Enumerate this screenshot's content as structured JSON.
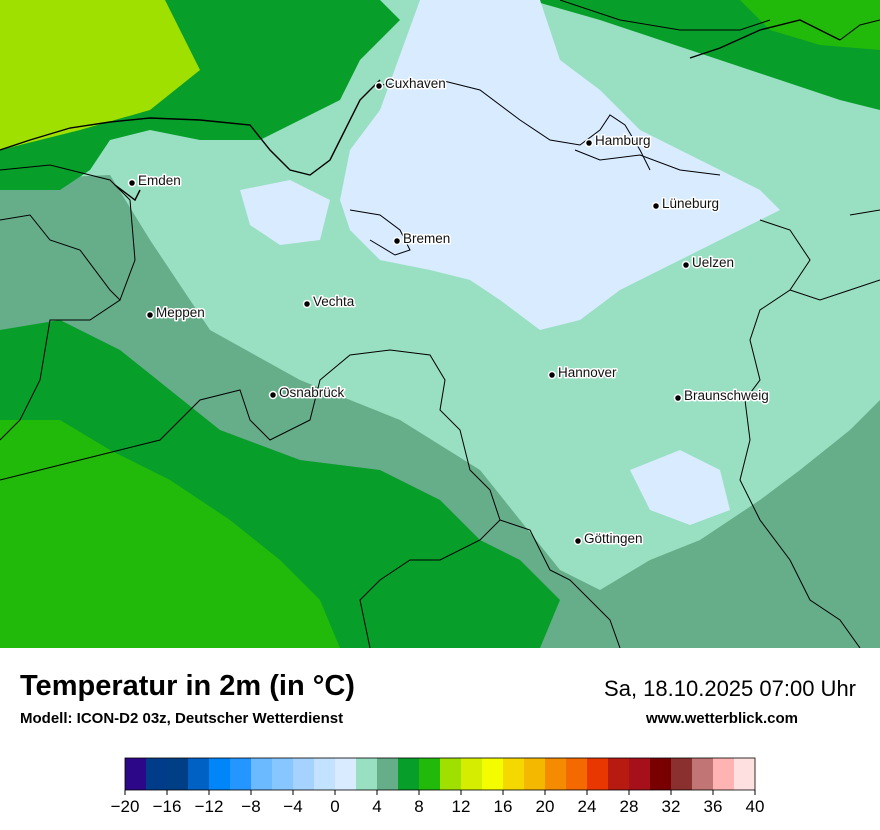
{
  "title": "Temperatur in 2m (in °C)",
  "subtitle": "Modell: ICON-D2 03z, Deutscher Wetterdienst",
  "datetime": "Sa, 18.10.2025 07:00 Uhr",
  "website": "www.wetterblick.com",
  "cities": [
    {
      "name": "Cuxhaven"
    },
    {
      "name": "Hamburg"
    },
    {
      "name": "Emden"
    },
    {
      "name": "Lüneburg"
    },
    {
      "name": "Bremen"
    },
    {
      "name": "Uelzen"
    },
    {
      "name": "Vechta"
    },
    {
      "name": "Meppen"
    },
    {
      "name": "Hannover"
    },
    {
      "name": "Osnabrück"
    },
    {
      "name": "Braunschweig"
    },
    {
      "name": "Göttingen"
    }
  ],
  "colors": {
    "land_4_6": "#99dfc1",
    "land_2_4": "#d8ebff",
    "land_6_8": "#66ad8a",
    "land_8_10": "#079e2a",
    "land_10_12": "#21b90a",
    "sea_12_14": "#9fe000",
    "border": "#000000"
  },
  "legend": {
    "ticks": [
      "−20",
      "−16",
      "−12",
      "−8",
      "−4",
      "0",
      "4",
      "8",
      "12",
      "16",
      "20",
      "24",
      "28",
      "32",
      "36",
      "40"
    ],
    "colors": [
      "#2c0788",
      "#003c8a",
      "#003f85",
      "#0061c4",
      "#0086f8",
      "#2596ff",
      "#6bbaff",
      "#87c6ff",
      "#a5d2ff",
      "#c2e2ff",
      "#d8ebff",
      "#99dfc1",
      "#66ad8a",
      "#079e2a",
      "#21b90a",
      "#9fe000",
      "#d5ed00",
      "#f4fd00",
      "#f5d800",
      "#f5b800",
      "#f48b00",
      "#f46a00",
      "#e83700",
      "#b71a10",
      "#a6101a",
      "#780000",
      "#8a3130",
      "#c27575",
      "#ffb3b3",
      "#ffe0e0"
    ]
  }
}
